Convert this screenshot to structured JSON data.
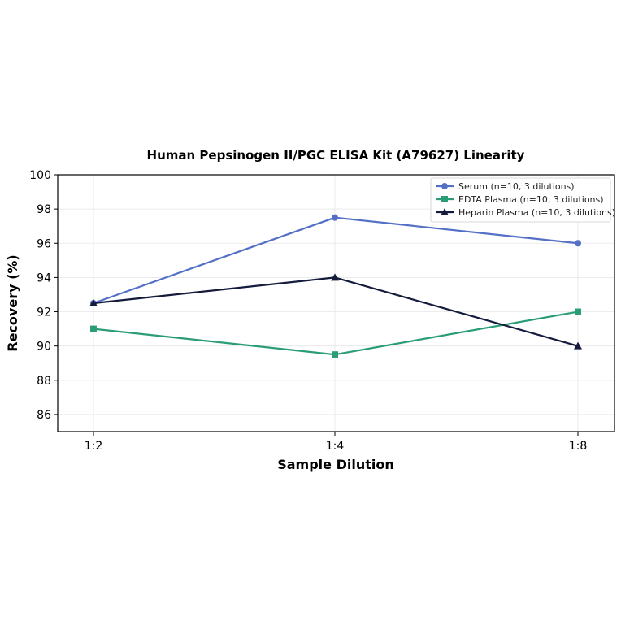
{
  "chart_data": {
    "type": "line",
    "title": "Human Pepsinogen II/PGC ELISA Kit (A79627) Linearity",
    "xlabel": "Sample Dilution",
    "ylabel": "Recovery (%)",
    "categories": [
      "1:2",
      "1:4",
      "1:8"
    ],
    "ylim": [
      85,
      100
    ],
    "yticks": [
      86,
      88,
      90,
      92,
      94,
      96,
      98,
      100
    ],
    "grid": true,
    "legend_position": "top-right",
    "series": [
      {
        "name": "Serum (n=10, 3 dilutions)",
        "values": [
          92.5,
          97.5,
          96.0
        ],
        "color": "#5470c6",
        "marker": "circle"
      },
      {
        "name": "EDTA Plasma (n=10, 3 dilutions)",
        "values": [
          91.0,
          89.5,
          92.0
        ],
        "color": "#2a9d76",
        "marker": "square"
      },
      {
        "name": "Heparin Plasma (n=10, 3 dilutions)",
        "values": [
          92.5,
          94.0,
          90.0
        ],
        "color": "#141b3d",
        "marker": "triangle"
      }
    ]
  }
}
